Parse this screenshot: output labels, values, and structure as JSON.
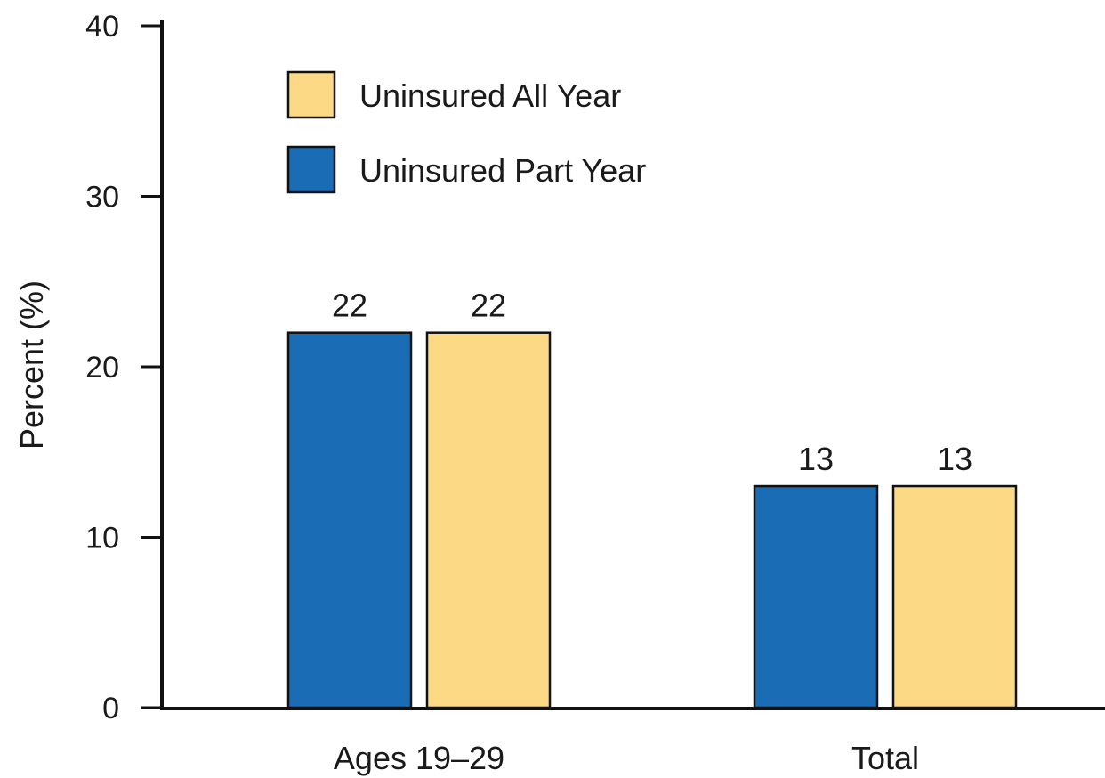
{
  "chart_data": {
    "type": "bar",
    "title": "",
    "xlabel": "",
    "ylabel": "Percent (%)",
    "ylim": [
      0,
      40
    ],
    "yticks": [
      0,
      10,
      20,
      30,
      40
    ],
    "grid": false,
    "legend_position": "top-left",
    "categories": [
      "Ages 19–29",
      "Total"
    ],
    "series": [
      {
        "name": "Uninsured Part Year",
        "color": "#1a6db4",
        "values": [
          22,
          13
        ]
      },
      {
        "name": "Uninsured All Year",
        "color": "#fcd985",
        "values": [
          22,
          13
        ]
      }
    ],
    "legend_order": [
      "Uninsured All Year",
      "Uninsured Part Year"
    ],
    "data_labels": true
  }
}
